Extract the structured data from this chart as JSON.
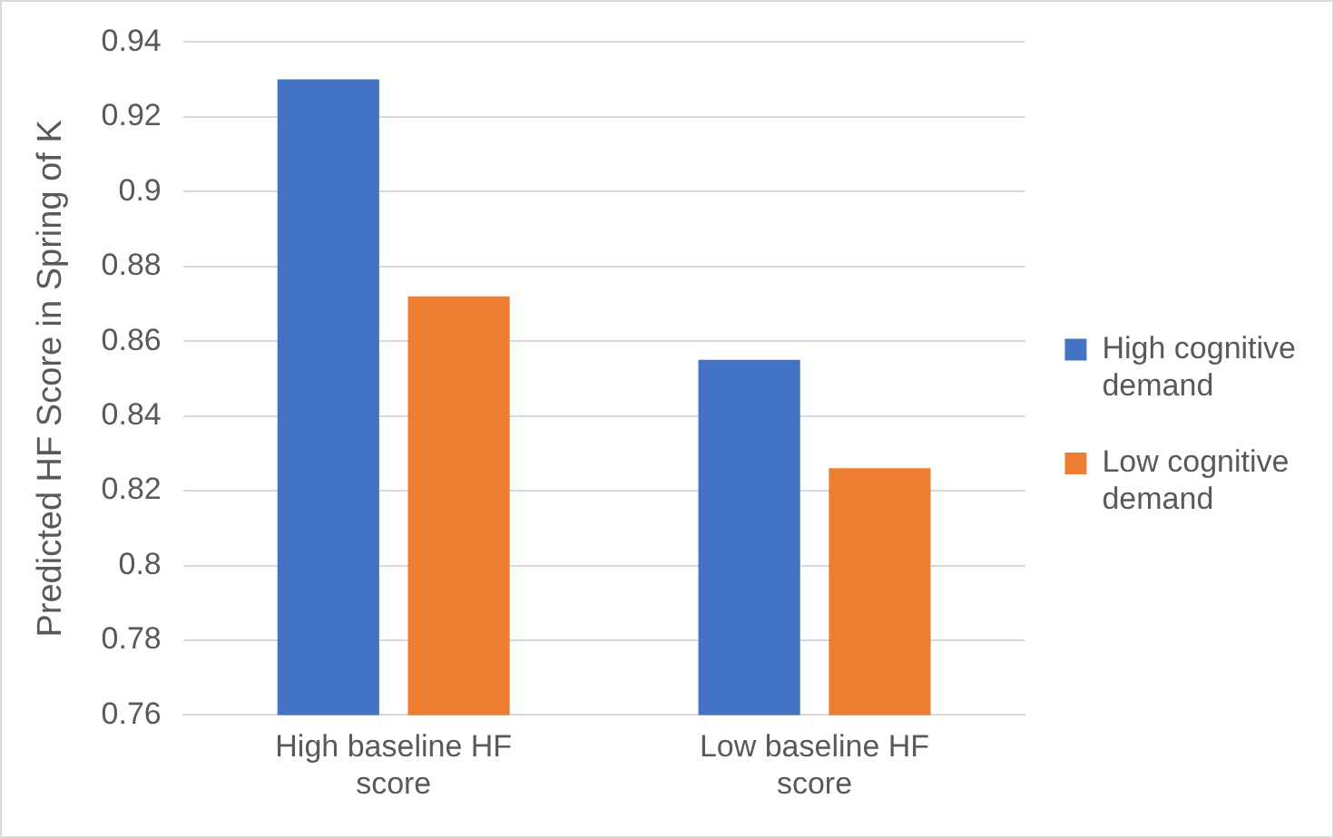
{
  "chart_data": {
    "type": "bar",
    "ylabel": "Predicted HF Score in Spring of K",
    "categories": [
      "High baseline HF score",
      "Low baseline HF score"
    ],
    "series": [
      {
        "name": "High cognitive demand",
        "color": "#4472c4",
        "values": [
          0.93,
          0.855
        ]
      },
      {
        "name": "Low cognitive demand",
        "color": "#ed7d31",
        "values": [
          0.872,
          0.826
        ]
      }
    ],
    "ylim": [
      0.76,
      0.94
    ],
    "yticks": [
      0.76,
      0.78,
      0.8,
      0.82,
      0.84,
      0.86,
      0.88,
      0.9,
      0.92,
      0.94
    ],
    "grid": "y",
    "legend": "right"
  }
}
